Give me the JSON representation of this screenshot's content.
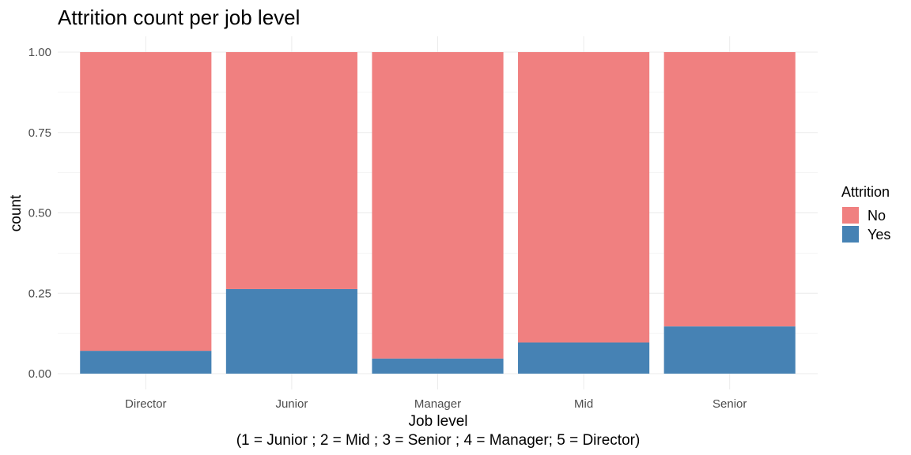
{
  "chart_data": {
    "type": "bar",
    "stacked": true,
    "position": "fill",
    "title": "Attrition count per job level",
    "xlabel": "Job level",
    "xlabel_sub": "(1 = Junior ; 2 = Mid ; 3 = Senior ; 4 = Manager; 5 = Director)",
    "ylabel": "count",
    "ylim": [
      0,
      1
    ],
    "yticks": [
      0,
      0.25,
      0.5,
      0.75,
      1
    ],
    "ytick_labels": [
      "0.00",
      "0.25",
      "0.50",
      "0.75",
      "1.00"
    ],
    "categories": [
      "Director",
      "Junior",
      "Manager",
      "Mid",
      "Senior"
    ],
    "series": [
      {
        "name": "No",
        "color": "#F08080",
        "values": [
          0.929,
          0.737,
          0.953,
          0.903,
          0.853
        ]
      },
      {
        "name": "Yes",
        "color": "#4682B4",
        "values": [
          0.071,
          0.263,
          0.047,
          0.097,
          0.147
        ]
      }
    ],
    "grid": true,
    "legend": {
      "title": "Attrition",
      "placement": "right"
    }
  }
}
